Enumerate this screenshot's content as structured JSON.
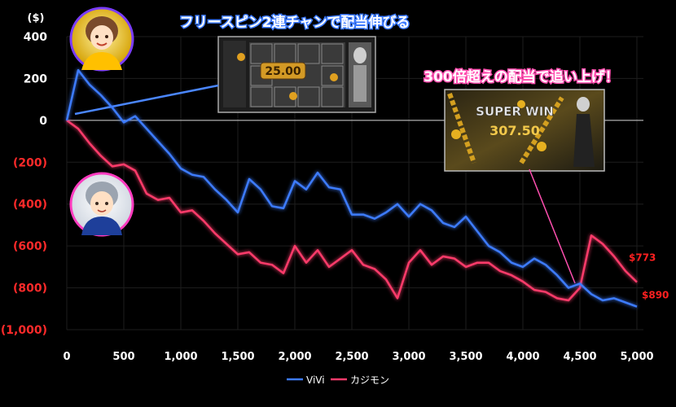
{
  "chart_data": {
    "type": "line",
    "ylabel": "($)",
    "xlim": [
      0,
      5000
    ],
    "ylim": [
      -1000,
      400
    ],
    "grid": true,
    "legend_position": "bottom-center",
    "x_ticks": [
      "0",
      "500",
      "1,000",
      "1,500",
      "2,000",
      "2,500",
      "3,000",
      "3,500",
      "4,000",
      "4,500",
      "5,000"
    ],
    "y_ticks": [
      {
        "value": 400,
        "label": "400"
      },
      {
        "value": 200,
        "label": "200"
      },
      {
        "value": 0,
        "label": "0"
      },
      {
        "value": -200,
        "label": "(200)"
      },
      {
        "value": -400,
        "label": "(400)"
      },
      {
        "value": -600,
        "label": "(600)"
      },
      {
        "value": -800,
        "label": "(800)"
      },
      {
        "value": -1000,
        "label": "(1,000)"
      }
    ],
    "series": [
      {
        "name": "ViVi",
        "color": "#3d7bff",
        "end_label": "$890",
        "x": [
          0,
          100,
          200,
          300,
          400,
          500,
          600,
          700,
          800,
          900,
          1000,
          1100,
          1200,
          1300,
          1400,
          1500,
          1600,
          1700,
          1800,
          1900,
          2000,
          2100,
          2200,
          2300,
          2400,
          2500,
          2600,
          2700,
          2800,
          2900,
          3000,
          3100,
          3200,
          3300,
          3400,
          3500,
          3600,
          3700,
          3800,
          3900,
          4000,
          4100,
          4200,
          4300,
          4400,
          4500,
          4600,
          4700,
          4800,
          4900,
          5000
        ],
        "values": [
          0,
          240,
          170,
          120,
          60,
          -10,
          20,
          -40,
          -100,
          -160,
          -230,
          -260,
          -270,
          -330,
          -380,
          -440,
          -280,
          -330,
          -410,
          -420,
          -290,
          -330,
          -250,
          -320,
          -330,
          -450,
          -450,
          -470,
          -440,
          -400,
          -460,
          -400,
          -430,
          -490,
          -510,
          -460,
          -530,
          -600,
          -630,
          -680,
          -700,
          -660,
          -690,
          -740,
          -800,
          -780,
          -830,
          -860,
          -850,
          -870,
          -890
        ]
      },
      {
        "name": "カジモン",
        "color": "#ff3b6b",
        "end_label": "$773",
        "x": [
          0,
          100,
          200,
          300,
          400,
          500,
          600,
          700,
          800,
          900,
          1000,
          1100,
          1200,
          1300,
          1400,
          1500,
          1600,
          1700,
          1800,
          1900,
          2000,
          2100,
          2200,
          2300,
          2400,
          2500,
          2600,
          2700,
          2800,
          2900,
          3000,
          3100,
          3200,
          3300,
          3400,
          3500,
          3600,
          3700,
          3800,
          3900,
          4000,
          4100,
          4200,
          4300,
          4400,
          4500,
          4600,
          4700,
          4800,
          4900,
          5000
        ],
        "values": [
          0,
          -40,
          -110,
          -170,
          -220,
          -210,
          -240,
          -350,
          -380,
          -370,
          -440,
          -430,
          -480,
          -540,
          -590,
          -640,
          -630,
          -680,
          -690,
          -730,
          -600,
          -680,
          -620,
          -700,
          -660,
          -620,
          -690,
          -710,
          -760,
          -850,
          -680,
          -620,
          -690,
          -650,
          -660,
          -700,
          -680,
          -680,
          -720,
          -740,
          -770,
          -810,
          -820,
          -850,
          -860,
          -800,
          -550,
          -590,
          -650,
          -720,
          -773
        ]
      }
    ],
    "annotations": [
      {
        "text": "フリースピン2連チャンで配当伸びる",
        "color": "#3d7bff"
      },
      {
        "text": "300倍超えの配当で追い上げ！",
        "color": "#ff4fb0"
      }
    ],
    "inset_texts": [
      "25.00",
      "SUPER WIN",
      "307.50"
    ]
  }
}
